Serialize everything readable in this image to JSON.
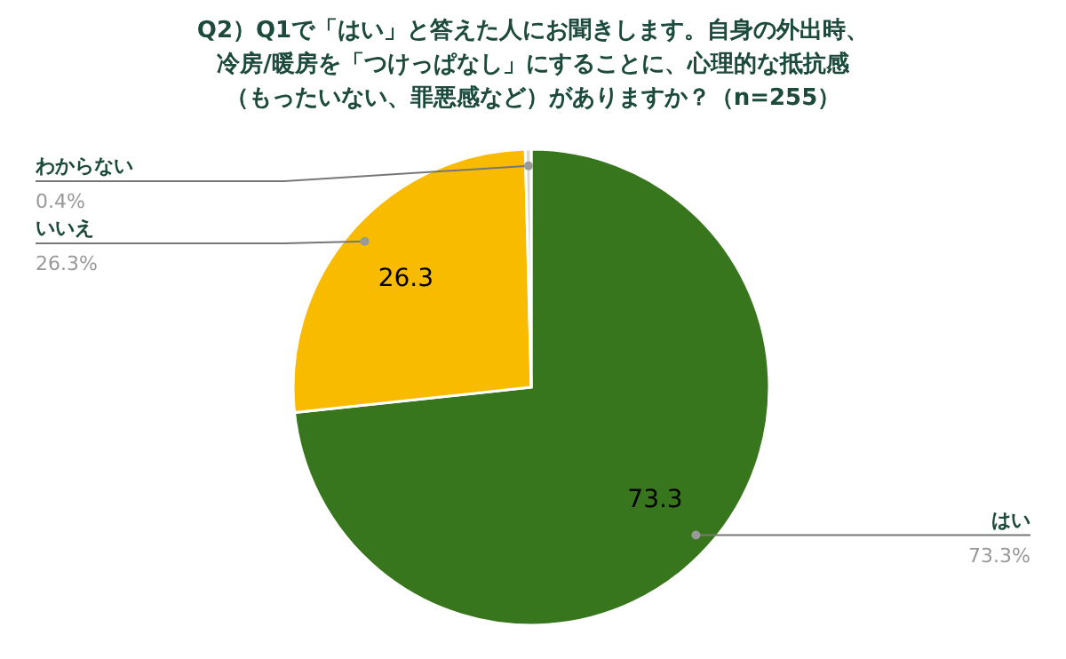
{
  "chart_data": {
    "type": "pie",
    "title": "Q2）Q1で「はい」と答えた人にお聞きします。自身の外出時、冷房/暖房を「つけっぱなし」にすることに、心理的な抵抗感（もったいない、罪悪感など）がありますか？（n=255）",
    "categories": [
      "はい",
      "いいえ",
      "わからない"
    ],
    "values": [
      73.3,
      26.3,
      0.4
    ],
    "colors": [
      "#38761d",
      "#f9bb00",
      "#d9d9d9"
    ],
    "value_labels": [
      "73.3%",
      "26.3%",
      "0.4%"
    ],
    "annotations": [
      {
        "text": "73.3",
        "x": "はい"
      },
      {
        "text": "26.3",
        "x": "いいえ"
      }
    ]
  }
}
